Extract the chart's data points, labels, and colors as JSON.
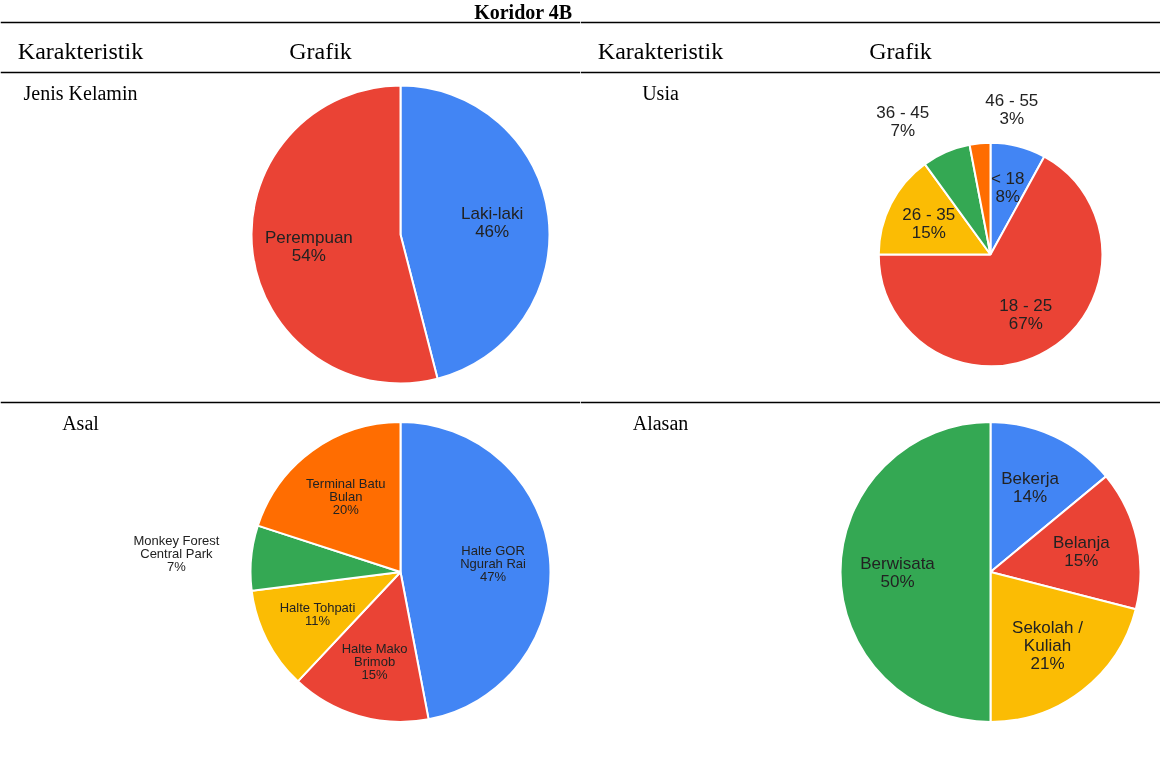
{
  "chart_data": [
    {
      "type": "pie",
      "title": "Jenis Kelamin",
      "subtitle": "Koridor 4B",
      "annotations": [
        "Karakteristik",
        "Grafik"
      ],
      "categories": [
        "Laki-laki",
        "Perempuan"
      ],
      "values": [
        46,
        54
      ],
      "colors": [
        "#4285f4",
        "#ea4335"
      ],
      "value_labels": [
        "46%",
        "54%"
      ]
    },
    {
      "type": "pie",
      "title": "Usia",
      "annotations": [
        "Karakteristik",
        "Grafik"
      ],
      "categories": [
        "< 18",
        "18 - 25",
        "26 - 35",
        "36 - 45",
        "46 - 55"
      ],
      "values": [
        8,
        67,
        15,
        7,
        3
      ],
      "colors": [
        "#4285f4",
        "#ea4335",
        "#fbbc04",
        "#34a853",
        "#ff6d01"
      ],
      "value_labels": [
        "8%",
        "67%",
        "15%",
        "7%",
        "3%"
      ]
    },
    {
      "type": "pie",
      "title": "Asal",
      "categories": [
        "Halte GOR Ngurah Rai",
        "Halte Mako Brimob",
        "Halte Tohpati",
        "Monkey Forest Central Park",
        "Terminal Batu Bulan"
      ],
      "values": [
        47,
        15,
        11,
        7,
        20
      ],
      "colors": [
        "#4285f4",
        "#ea4335",
        "#fbbc04",
        "#34a853",
        "#ff6d01"
      ],
      "value_labels": [
        "47%",
        "15%",
        "11%",
        "7%",
        "20%"
      ]
    },
    {
      "type": "pie",
      "title": "Alasan",
      "categories": [
        "Bekerja",
        "Belanja",
        "Sekolah / Kuliah",
        "Berwisata"
      ],
      "values": [
        14,
        15,
        21,
        50
      ],
      "colors": [
        "#4285f4",
        "#ea4335",
        "#fbbc04",
        "#34a853"
      ],
      "value_labels": [
        "14%",
        "15%",
        "21%",
        "50%"
      ]
    }
  ]
}
